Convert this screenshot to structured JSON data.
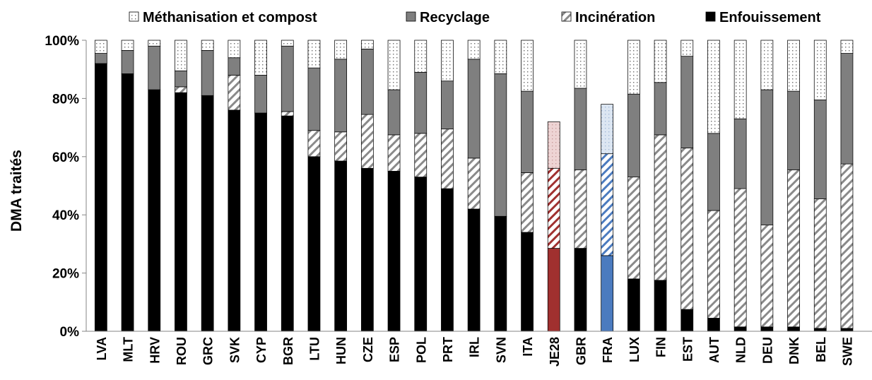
{
  "chart_data": {
    "type": "bar",
    "stacked": true,
    "ylabel": "DMA traités",
    "ylim": [
      0,
      100
    ],
    "y_ticks": [
      "0%",
      "20%",
      "40%",
      "60%",
      "80%",
      "100%"
    ],
    "legend_position": "top",
    "categories": [
      "LVA",
      "MLT",
      "HRV",
      "ROU",
      "GRC",
      "SVK",
      "CYP",
      "BGR",
      "LTU",
      "HUN",
      "CZE",
      "ESP",
      "POL",
      "PRT",
      "IRL",
      "SVN",
      "ITA",
      "JE28",
      "GBR",
      "FRA",
      "LUX",
      "FIN",
      "EST",
      "AUT",
      "NLD",
      "DEU",
      "DNK",
      "BEL",
      "SWE"
    ],
    "series": [
      {
        "name": "Enfouissement",
        "pattern": "solid-black",
        "values": [
          92,
          88.5,
          83,
          82,
          81,
          76,
          75,
          74,
          60,
          58.5,
          56,
          55,
          53,
          49,
          42,
          39.5,
          34,
          28.5,
          28.5,
          26,
          18,
          17.5,
          7.5,
          4.5,
          1.5,
          1.5,
          1.5,
          1,
          1
        ]
      },
      {
        "name": "Incinération",
        "pattern": "diagonal-hatch",
        "values": [
          0,
          0,
          0,
          2,
          0,
          12,
          0,
          1.5,
          9,
          10,
          18.5,
          12.5,
          15,
          20.5,
          17.5,
          0,
          20.5,
          27.5,
          27,
          35,
          35,
          50,
          55.5,
          37,
          47.5,
          35,
          54,
          44.5,
          56.5
        ]
      },
      {
        "name": "Recyclage",
        "pattern": "solid-gray",
        "values": [
          3.5,
          8,
          15,
          5.5,
          15.5,
          6,
          13,
          22.5,
          21.5,
          25,
          22.5,
          15.5,
          21,
          16.5,
          34,
          49,
          28,
          0,
          28,
          0,
          28.5,
          18,
          31.5,
          26.5,
          24,
          46.5,
          27,
          34,
          38
        ]
      },
      {
        "name": "Méthanisation et compost",
        "pattern": "dotted",
        "values": [
          4.5,
          3.5,
          2,
          10.5,
          3.5,
          6,
          12,
          2,
          9.5,
          6.5,
          3,
          17,
          11,
          14,
          6.5,
          11.5,
          17.5,
          16,
          16.5,
          17,
          18.5,
          14.5,
          5.5,
          32,
          27,
          17,
          17.5,
          20.5,
          4.5
        ]
      }
    ],
    "highlights": {
      "JE28": {
        "Enfouissement": "#a0302f",
        "Incinération": "#a0302f",
        "Recyclage": "#d99694",
        "Méthanisation et compost": "#eed4d4"
      },
      "FRA": {
        "Enfouissement": "#4b7bbf",
        "Incinération": "#4b7bbf",
        "Recyclage": "#95b3d7",
        "Méthanisation et compost": "#dce6f2"
      }
    }
  }
}
